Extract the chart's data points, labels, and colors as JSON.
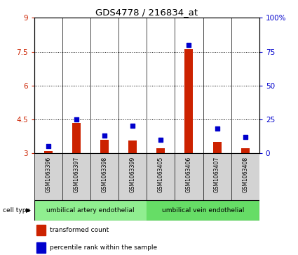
{
  "title": "GDS4778 / 216834_at",
  "samples": [
    "GSM1063396",
    "GSM1063397",
    "GSM1063398",
    "GSM1063399",
    "GSM1063405",
    "GSM1063406",
    "GSM1063407",
    "GSM1063408"
  ],
  "transformed_count": [
    3.1,
    4.35,
    3.6,
    3.55,
    3.2,
    7.6,
    3.5,
    3.2
  ],
  "percentile_rank": [
    5,
    25,
    13,
    20,
    10,
    80,
    18,
    12
  ],
  "ylim_left": [
    3,
    9
  ],
  "ylim_right": [
    0,
    100
  ],
  "yticks_left": [
    3,
    4.5,
    6,
    7.5,
    9
  ],
  "yticks_right": [
    0,
    25,
    50,
    75,
    100
  ],
  "ytick_labels_left": [
    "3",
    "4.5",
    "6",
    "7.5",
    "9"
  ],
  "ytick_labels_right": [
    "0",
    "25",
    "50",
    "75",
    "100%"
  ],
  "cell_type_groups": [
    {
      "label": "umbilical artery endothelial",
      "samples": [
        0,
        1,
        2,
        3
      ],
      "color": "#90ee90"
    },
    {
      "label": "umbilical vein endothelial",
      "samples": [
        4,
        5,
        6,
        7
      ],
      "color": "#66dd66"
    }
  ],
  "cell_type_label": "cell type",
  "legend_items": [
    {
      "color": "#cc2200",
      "label": "transformed count"
    },
    {
      "color": "#0000cc",
      "label": "percentile rank within the sample"
    }
  ],
  "bar_color": "#cc2200",
  "dot_color": "#0000cc",
  "sample_bg_color": "#d3d3d3",
  "bar_width": 0.3,
  "dot_size": 18,
  "left_color": "#cc2200",
  "right_color": "#0000cc"
}
